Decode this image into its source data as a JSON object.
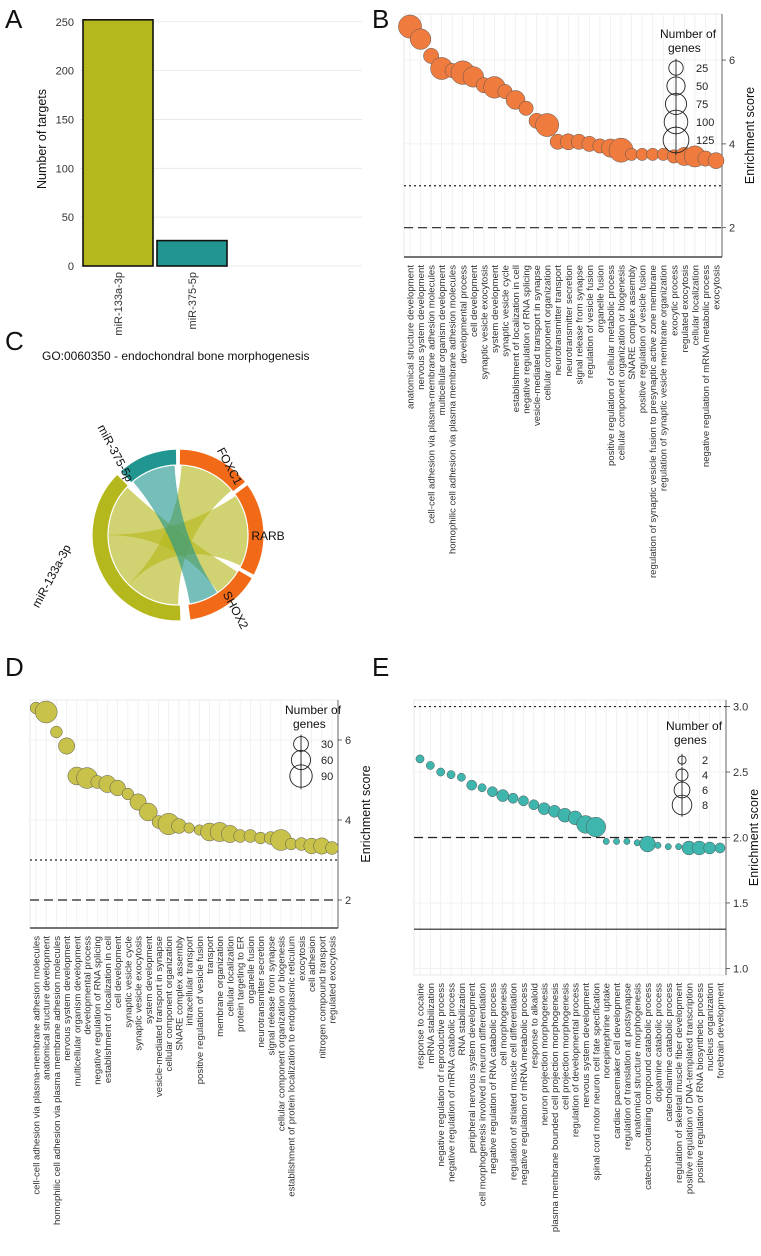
{
  "chart_data": [
    {
      "panel": "A",
      "type": "bar",
      "categories": [
        "miR-133a-3p",
        "miR-375-5p"
      ],
      "values": [
        252,
        26
      ],
      "colors": [
        "#b5b81c",
        "#219690"
      ],
      "ylabel": "Number of targets",
      "ylim": [
        0,
        260
      ],
      "yticks": [
        0,
        50,
        100,
        150,
        200,
        250
      ]
    },
    {
      "panel": "B",
      "type": "scatter",
      "ylabel": "Enrichment score",
      "ylim": [
        1.3,
        7.1
      ],
      "yticks": [
        2,
        4,
        6
      ],
      "thresholds": [
        1.3,
        2.0,
        3.0
      ],
      "color": "#f07b3e",
      "legend_title": "Number of genes",
      "legend_values": [
        25,
        50,
        75,
        100,
        125
      ],
      "categories": [
        "anatomical structure development",
        "nervous system development",
        "cell-cell adhesion via plasma-membrane adhesion molecules",
        "multicellular organism development",
        "homophilic cell adhesion via plasma membrane adhesion molecules",
        "developmental process",
        "cell development",
        "synaptic vesicle exocytosis",
        "system development",
        "synaptic vesicle cycle",
        "establishment of localization in cell",
        "negative regulation of RNA splicing",
        "vesicle-mediated transport in synapse",
        "cellular component organization",
        "neurotransmitter transport",
        "neurotransmitter secretion",
        "signal release from synapse",
        "regulation of vesicle fusion",
        "organelle fusion",
        "positive regulation of cellular metabolic process",
        "cellular component organization or biogenesis",
        "SNARE complex assembly",
        "positive regulation of vesicle fusion",
        "regulation of synaptic vesicle fusion to presynaptic active zone membrane",
        "regulation of synaptic vesicle membrane organization",
        "exocytic process",
        "regulated exocytosis",
        "cellular localization",
        "negative regulation of mRNA metabolic process",
        "exocytosis"
      ],
      "values": [
        6.8,
        6.5,
        6.1,
        5.8,
        5.75,
        5.7,
        5.6,
        5.4,
        5.35,
        5.25,
        5.05,
        4.85,
        4.55,
        4.45,
        4.05,
        4.05,
        4.05,
        4.0,
        3.95,
        3.9,
        3.85,
        3.75,
        3.75,
        3.75,
        3.75,
        3.7,
        3.7,
        3.7,
        3.65,
        3.6
      ],
      "sizes": [
        95,
        70,
        30,
        85,
        25,
        100,
        70,
        30,
        80,
        25,
        55,
        25,
        30,
        95,
        30,
        35,
        30,
        30,
        25,
        50,
        105,
        15,
        15,
        15,
        15,
        20,
        50,
        75,
        30,
        35
      ]
    },
    {
      "panel": "C",
      "type": "chord",
      "title": "GO:0060350 - endochondral bone morphogenesis",
      "sectors": [
        {
          "name": "FOXC1",
          "color": "#f26a18"
        },
        {
          "name": "RARB",
          "color": "#f26a18"
        },
        {
          "name": "SHOX2",
          "color": "#f26a18"
        },
        {
          "name": "miR-133a-3p",
          "color": "#b5b81c"
        },
        {
          "name": "miR-375-5p",
          "color": "#219690"
        }
      ],
      "links": [
        {
          "from": "miR-133a-3p",
          "to": "FOXC1"
        },
        {
          "from": "miR-133a-3p",
          "to": "RARB"
        },
        {
          "from": "miR-133a-3p",
          "to": "SHOX2"
        },
        {
          "from": "miR-375-5p",
          "to": "SHOX2"
        }
      ]
    },
    {
      "panel": "D",
      "type": "scatter",
      "ylabel": "Enrichment score",
      "ylim": [
        1.3,
        7.0
      ],
      "yticks": [
        2,
        4,
        6
      ],
      "thresholds": [
        1.3,
        2.0,
        3.0
      ],
      "color": "#c8c24a",
      "legend_title": "Number of genes",
      "legend_values": [
        30,
        60,
        90
      ],
      "categories": [
        "cell-cell adhesion via plasma-membrane adhesion molecules",
        "anatomical structure development",
        "homophilic cell adhesion via plasma membrane adhesion molecules",
        "nervous system development",
        "multicellular organism development",
        "developmental process",
        "negative regulation of RNA splicing",
        "establishment of localization in cell",
        "cell development",
        "synaptic vesicle cycle",
        "synaptic vesicle exocytosis",
        "system development",
        "vesicle-mediated transport in synapse",
        "cellular component organization",
        "SNARE complex assembly",
        "intracellular transport",
        "positive regulation of vesicle fusion",
        "transport",
        "membrane organization",
        "cellular localization",
        "protein targeting to ER",
        "organelle fusion",
        "neurotransmitter secretion",
        "signal release from synapse",
        "cellular component organization or biogenesis",
        "establishment of protein localization to endoplasmic reticulum",
        "exocytosis",
        "cell adhesion",
        "nitrogen compound transport",
        "regulated exocytosis"
      ],
      "values": [
        6.8,
        6.7,
        6.2,
        5.85,
        5.1,
        5.05,
        4.95,
        4.9,
        4.8,
        4.65,
        4.45,
        4.2,
        3.95,
        3.9,
        3.85,
        3.8,
        3.75,
        3.7,
        3.7,
        3.65,
        3.6,
        3.6,
        3.55,
        3.55,
        3.5,
        3.4,
        3.4,
        3.35,
        3.35,
        3.3
      ],
      "sizes": [
        15,
        85,
        15,
        40,
        50,
        75,
        20,
        45,
        35,
        15,
        40,
        50,
        20,
        80,
        30,
        10,
        10,
        50,
        60,
        45,
        20,
        20,
        15,
        20,
        75,
        15,
        20,
        35,
        40,
        20
      ]
    },
    {
      "panel": "E",
      "type": "scatter",
      "ylabel": "Enrichment score",
      "ylim": [
        0.95,
        3.05
      ],
      "yticks": [
        1.0,
        1.5,
        2.0,
        2.5,
        3.0
      ],
      "tick_labels": [
        "1.0",
        "1.5",
        "2.0",
        "2.5",
        "3.0"
      ],
      "thresholds": [
        1.3,
        2.0,
        3.0
      ],
      "color": "#3eb5ad",
      "legend_title": "Number of genes",
      "legend_values": [
        2,
        4,
        6,
        8
      ],
      "categories": [
        "response to cocaine",
        "mRNA stabilization",
        "negative regulation of reproductive process",
        "negative regulation of mRNA catabolic process",
        "RNA stabilization",
        "peripheral nervous system development",
        "cell morphogenesis involved in neuron differentiation",
        "negative regulation of RNA catabolic process",
        "cell morphogenesis",
        "regulation of striated muscle cell differentiation",
        "negative regulation of mRNA metabolic process",
        "response to alkaloid",
        "neuron projection morphogenesis",
        "plasma membrane bounded cell projection morphogenesis",
        "cell projection morphogenesis",
        "regulation of developmental process",
        "nervous system development",
        "spinal cord motor neuron cell fate specification",
        "norepinephrine uptake",
        "cardiac pacemaker cell development",
        "regulation of translation at postsynapse",
        "anatomical structure morphogenesis",
        "catechol-containing compound catabolic process",
        "dopamine catabolic process",
        "catecholamine catabolic process",
        "regulation of skeletal muscle fiber development",
        "positive regulation of DNA-templated transcription",
        "positive regulation of RNA biosynthetic process",
        "nucleus organization",
        "forebrain development"
      ],
      "values": [
        2.6,
        2.55,
        2.5,
        2.48,
        2.46,
        2.4,
        2.38,
        2.35,
        2.32,
        2.3,
        2.28,
        2.25,
        2.22,
        2.2,
        2.17,
        2.15,
        2.1,
        2.08,
        1.97,
        1.97,
        1.97,
        1.96,
        1.95,
        1.94,
        1.93,
        1.93,
        1.92,
        1.92,
        1.92,
        1.92
      ],
      "sizes": [
        2,
        2,
        2,
        2,
        2,
        3,
        2,
        3,
        4,
        3,
        3,
        3,
        4,
        4,
        5,
        5,
        7,
        8,
        1,
        1,
        1,
        1,
        6,
        1,
        1,
        1,
        5,
        5,
        4,
        3
      ]
    }
  ],
  "labels": {
    "panel_A": "A",
    "panel_B": "B",
    "panel_C": "C",
    "panel_D": "D",
    "panel_E": "E",
    "legend_title_line1": "Number of",
    "legend_title_line2": "genes"
  }
}
